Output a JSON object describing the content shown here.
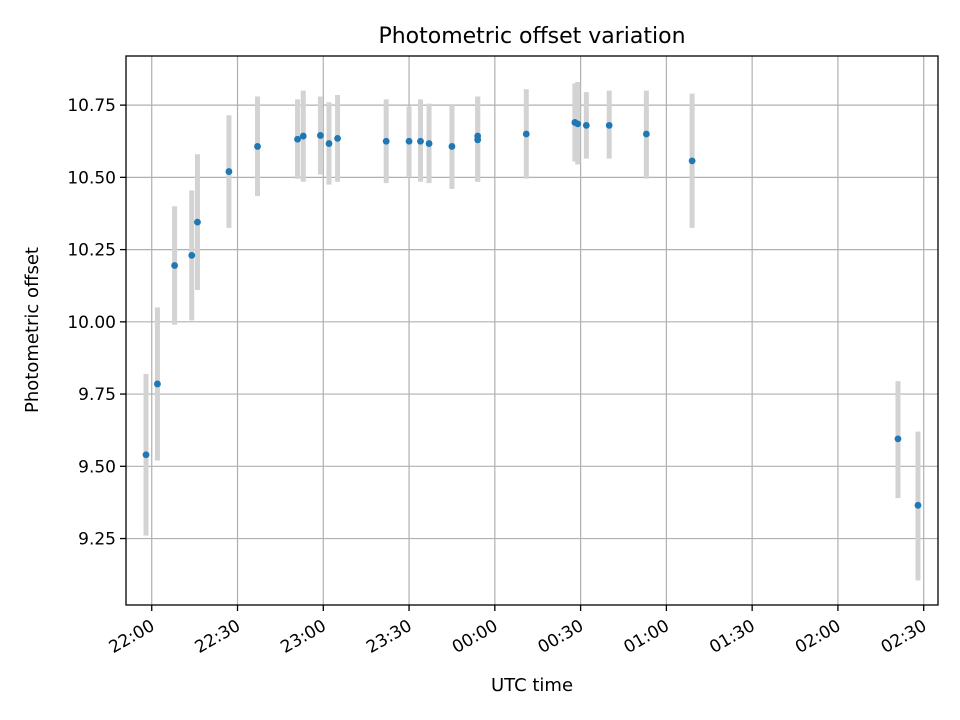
{
  "chart_data": {
    "type": "scatter",
    "title": "Photometric offset variation",
    "xlabel": "UTC time",
    "ylabel": "Photometric offset",
    "x_axis": {
      "type": "time",
      "range": [
        "21:51",
        "02:35"
      ],
      "ticks": [
        "22:00",
        "22:30",
        "23:00",
        "23:30",
        "00:00",
        "00:30",
        "01:00",
        "01:30",
        "02:00",
        "02:30"
      ],
      "tick_label_rotation": 30
    },
    "y_axis": {
      "range": [
        9.02,
        10.92
      ],
      "ticks": [
        "9.25",
        "9.50",
        "9.75",
        "10.00",
        "10.25",
        "10.50",
        "10.75"
      ]
    },
    "grid": true,
    "colors": {
      "points": "#1f77b4",
      "error_bars": "#d3d3d3"
    },
    "series": [
      {
        "points": [
          {
            "t": "21:58",
            "y": 9.54,
            "lo": 9.26,
            "hi": 9.82
          },
          {
            "t": "22:02",
            "y": 9.785,
            "lo": 9.52,
            "hi": 10.05
          },
          {
            "t": "22:08",
            "y": 10.195,
            "lo": 9.99,
            "hi": 10.4
          },
          {
            "t": "22:14",
            "y": 10.23,
            "lo": 10.005,
            "hi": 10.455
          },
          {
            "t": "22:16",
            "y": 10.345,
            "lo": 10.11,
            "hi": 10.58
          },
          {
            "t": "22:27",
            "y": 10.52,
            "lo": 10.325,
            "hi": 10.715
          },
          {
            "t": "22:37",
            "y": 10.607,
            "lo": 10.435,
            "hi": 10.78
          },
          {
            "t": "22:51",
            "y": 10.632,
            "lo": 10.495,
            "hi": 10.77
          },
          {
            "t": "22:53",
            "y": 10.643,
            "lo": 10.485,
            "hi": 10.8
          },
          {
            "t": "22:59",
            "y": 10.645,
            "lo": 10.51,
            "hi": 10.78
          },
          {
            "t": "23:02",
            "y": 10.617,
            "lo": 10.475,
            "hi": 10.76
          },
          {
            "t": "23:05",
            "y": 10.635,
            "lo": 10.485,
            "hi": 10.785
          },
          {
            "t": "23:22",
            "y": 10.625,
            "lo": 10.48,
            "hi": 10.77
          },
          {
            "t": "23:30",
            "y": 10.625,
            "lo": 10.5,
            "hi": 10.745
          },
          {
            "t": "23:34",
            "y": 10.625,
            "lo": 10.485,
            "hi": 10.77
          },
          {
            "t": "23:37",
            "y": 10.617,
            "lo": 10.48,
            "hi": 10.755
          },
          {
            "t": "23:45",
            "y": 10.607,
            "lo": 10.46,
            "hi": 10.75
          },
          {
            "t": "23:54",
            "y": 10.63,
            "lo": 10.485,
            "hi": 10.78
          },
          {
            "t": "23:54",
            "y": 10.643,
            "lo": 10.485,
            "hi": 10.78
          },
          {
            "t": "00:11",
            "y": 10.65,
            "lo": 10.495,
            "hi": 10.805
          },
          {
            "t": "00:28",
            "y": 10.69,
            "lo": 10.555,
            "hi": 10.825
          },
          {
            "t": "00:29",
            "y": 10.685,
            "lo": 10.545,
            "hi": 10.83
          },
          {
            "t": "00:32",
            "y": 10.68,
            "lo": 10.565,
            "hi": 10.795
          },
          {
            "t": "00:40",
            "y": 10.68,
            "lo": 10.565,
            "hi": 10.8
          },
          {
            "t": "00:53",
            "y": 10.65,
            "lo": 10.495,
            "hi": 10.8
          },
          {
            "t": "01:09",
            "y": 10.557,
            "lo": 10.325,
            "hi": 10.79
          },
          {
            "t": "02:21",
            "y": 9.595,
            "lo": 9.39,
            "hi": 9.795
          },
          {
            "t": "02:28",
            "y": 9.365,
            "lo": 9.105,
            "hi": 9.62
          }
        ]
      }
    ]
  }
}
